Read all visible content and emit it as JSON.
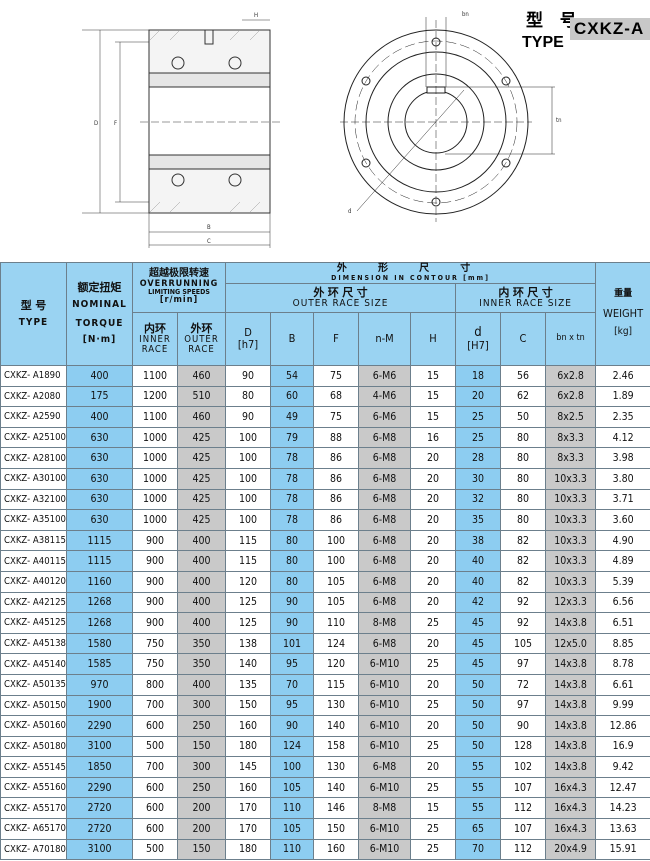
{
  "title": {
    "type_cn": "型 号",
    "type_en": "TYPE",
    "type_code": "CXKZ-A"
  },
  "drawing_labels": {
    "D": "D",
    "F": "F",
    "B": "B",
    "C": "C",
    "H": "H",
    "bn": "bn",
    "tn": "tn",
    "d": "d"
  },
  "colors": {
    "header": "#9ad3f2",
    "highlight_blue": "#8dcdf1",
    "highlight_gray": "#c9c9c9"
  },
  "header": {
    "type_cn": "型 号",
    "type_en": "TYPE",
    "torque_cn": "额定扭矩",
    "torque_en1": "NOMINAL",
    "torque_en2": "TORQUE",
    "torque_unit": "[N·m]",
    "speed_cn": "超越极限转速",
    "speed_en1": "OVERRUNNING",
    "speed_en2": "LIMITING SPEEDS",
    "speed_unit": "[r/min]",
    "inner_cn": "内环",
    "inner_en1": "INNER",
    "inner_en2": "RACE",
    "outer_cn": "外环",
    "outer_en1": "OUTER",
    "outer_en2": "RACE",
    "dim_cn": "外 形 尺 寸",
    "dim_en": "DIMENSION IN CONTOUR [mm]",
    "outer_size_cn": "外 环 尺 寸",
    "outer_size_en": "OUTER RACE SIZE",
    "inner_size_cn": "内 环 尺 寸",
    "inner_size_en": "INNER RACE SIZE",
    "D": "D",
    "D_tol": "[h7]",
    "B": "B",
    "F": "F",
    "nM": "n-M",
    "H": "H",
    "d": "d",
    "d_tol": "[H7]",
    "C": "C",
    "bxt": "bn x tn",
    "weight_cn": "重量",
    "weight_en": "WEIGHT",
    "weight_unit": "[kg]"
  },
  "rows": [
    [
      "CXKZ- A1890",
      "400",
      "1100",
      "460",
      "90",
      "54",
      "75",
      "6-M6",
      "15",
      "18",
      "56",
      "6x2.8",
      "2.46"
    ],
    [
      "CXKZ- A2080",
      "175",
      "1200",
      "510",
      "80",
      "60",
      "68",
      "4-M6",
      "15",
      "20",
      "62",
      "6x2.8",
      "1.89"
    ],
    [
      "CXKZ- A2590",
      "400",
      "1100",
      "460",
      "90",
      "49",
      "75",
      "6-M6",
      "15",
      "25",
      "50",
      "8x2.5",
      "2.35"
    ],
    [
      "CXKZ- A25100",
      "630",
      "1000",
      "425",
      "100",
      "79",
      "88",
      "6-M8",
      "16",
      "25",
      "80",
      "8x3.3",
      "4.12"
    ],
    [
      "CXKZ- A28100",
      "630",
      "1000",
      "425",
      "100",
      "78",
      "86",
      "6-M8",
      "20",
      "28",
      "80",
      "8x3.3",
      "3.98"
    ],
    [
      "CXKZ- A30100",
      "630",
      "1000",
      "425",
      "100",
      "78",
      "86",
      "6-M8",
      "20",
      "30",
      "80",
      "10x3.3",
      "3.80"
    ],
    [
      "CXKZ- A32100",
      "630",
      "1000",
      "425",
      "100",
      "78",
      "86",
      "6-M8",
      "20",
      "32",
      "80",
      "10x3.3",
      "3.71"
    ],
    [
      "CXKZ- A35100",
      "630",
      "1000",
      "425",
      "100",
      "78",
      "86",
      "6-M8",
      "20",
      "35",
      "80",
      "10x3.3",
      "3.60"
    ],
    [
      "CXKZ- A38115",
      "1115",
      "900",
      "400",
      "115",
      "80",
      "100",
      "6-M8",
      "20",
      "38",
      "82",
      "10x3.3",
      "4.90"
    ],
    [
      "CXKZ- A40115",
      "1115",
      "900",
      "400",
      "115",
      "80",
      "100",
      "6-M8",
      "20",
      "40",
      "82",
      "10x3.3",
      "4.89"
    ],
    [
      "CXKZ- A40120",
      "1160",
      "900",
      "400",
      "120",
      "80",
      "105",
      "6-M8",
      "20",
      "40",
      "82",
      "10x3.3",
      "5.39"
    ],
    [
      "CXKZ- A42125",
      "1268",
      "900",
      "400",
      "125",
      "90",
      "105",
      "6-M8",
      "20",
      "42",
      "92",
      "12x3.3",
      "6.56"
    ],
    [
      "CXKZ- A45125",
      "1268",
      "900",
      "400",
      "125",
      "90",
      "110",
      "8-M8",
      "25",
      "45",
      "92",
      "14x3.8",
      "6.51"
    ],
    [
      "CXKZ- A45138",
      "1580",
      "750",
      "350",
      "138",
      "101",
      "124",
      "6-M8",
      "20",
      "45",
      "105",
      "12x5.0",
      "8.85"
    ],
    [
      "CXKZ- A45140",
      "1585",
      "750",
      "350",
      "140",
      "95",
      "120",
      "6-M10",
      "25",
      "45",
      "97",
      "14x3.8",
      "8.78"
    ],
    [
      "CXKZ- A50135",
      "970",
      "800",
      "400",
      "135",
      "70",
      "115",
      "6-M10",
      "20",
      "50",
      "72",
      "14x3.8",
      "6.61"
    ],
    [
      "CXKZ- A50150",
      "1900",
      "700",
      "300",
      "150",
      "95",
      "130",
      "6-M10",
      "25",
      "50",
      "97",
      "14x3.8",
      "9.99"
    ],
    [
      "CXKZ- A50160",
      "2290",
      "600",
      "250",
      "160",
      "90",
      "140",
      "6-M10",
      "20",
      "50",
      "90",
      "14x3.8",
      "12.86"
    ],
    [
      "CXKZ- A50180",
      "3100",
      "500",
      "150",
      "180",
      "124",
      "158",
      "6-M10",
      "25",
      "50",
      "128",
      "14x3.8",
      "16.9"
    ],
    [
      "CXKZ- A55145",
      "1850",
      "700",
      "300",
      "145",
      "100",
      "130",
      "6-M8",
      "20",
      "55",
      "102",
      "14x3.8",
      "9.42"
    ],
    [
      "CXKZ- A55160",
      "2290",
      "600",
      "250",
      "160",
      "105",
      "140",
      "6-M10",
      "25",
      "55",
      "107",
      "16x4.3",
      "12.47"
    ],
    [
      "CXKZ- A55170",
      "2720",
      "600",
      "200",
      "170",
      "110",
      "146",
      "8-M8",
      "15",
      "55",
      "112",
      "16x4.3",
      "14.23"
    ],
    [
      "CXKZ- A65170",
      "2720",
      "600",
      "200",
      "170",
      "105",
      "150",
      "6-M10",
      "25",
      "65",
      "107",
      "16x4.3",
      "13.63"
    ],
    [
      "CXKZ- A70180",
      "3100",
      "500",
      "150",
      "180",
      "110",
      "160",
      "6-M10",
      "25",
      "70",
      "112",
      "20x4.9",
      "15.91"
    ]
  ]
}
